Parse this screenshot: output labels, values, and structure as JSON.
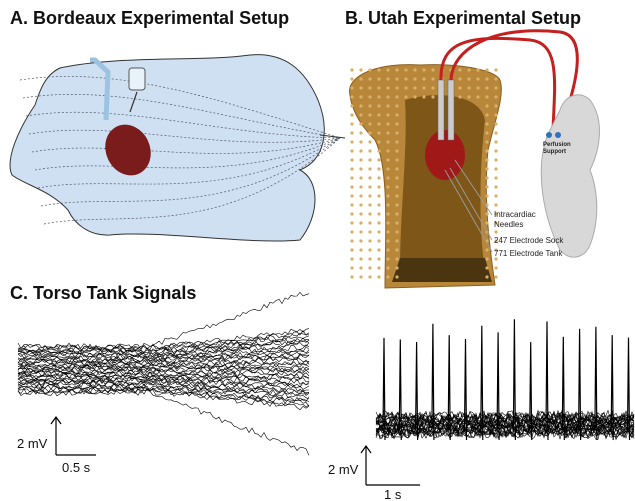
{
  "panels": [
    {
      "title": "A. Bordeaux Experimental Setup"
    },
    {
      "title": "B. Utah Experimental Setup",
      "labels": [
        "Intracardiac Needles",
        "247 Electrode Sock",
        "771 Electrode Tank"
      ],
      "support_label": "Perfusion Support"
    },
    {
      "title": "C. Torso Tank Signals",
      "scale_bars": [
        {
          "amplitude": "2 mV",
          "time": "0.5 s"
        },
        {
          "amplitude": "2 mV",
          "time": "1 s"
        }
      ]
    }
  ]
}
